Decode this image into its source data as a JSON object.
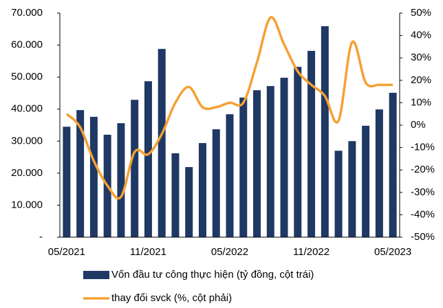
{
  "chart_data": {
    "type": "bar_line",
    "categories": [
      "05/2021",
      null,
      null,
      null,
      null,
      null,
      "11/2021",
      null,
      null,
      null,
      null,
      null,
      "05/2022",
      null,
      null,
      null,
      null,
      null,
      "11/2022",
      null,
      null,
      null,
      null,
      null,
      "05/2023"
    ],
    "series": [
      {
        "name": "Vốn đầu tư công thực hiện (tỷ đồng, cột trái)",
        "color": "#1f3864",
        "type": "bar",
        "values": [
          34500,
          39700,
          37600,
          32000,
          35600,
          42900,
          48700,
          58800,
          26200,
          21900,
          29400,
          33700,
          38400,
          43600,
          45900,
          47200,
          49800,
          53200,
          58200,
          65900,
          27000,
          30000,
          34800,
          39900,
          45100
        ]
      },
      {
        "name": "thay đổi svck (%, cột phải)",
        "color": "#f5a033",
        "type": "line",
        "axis": "y2",
        "values": [
          5,
          -1,
          -16,
          -27,
          -32,
          -12,
          -13,
          -4,
          10,
          17,
          8,
          8,
          10,
          10,
          28,
          48,
          36,
          24,
          18,
          13,
          2,
          37,
          19,
          18,
          18
        ]
      }
    ],
    "ylim": [
      0,
      70000
    ],
    "yticks": [
      {
        "value": 0,
        "label": "-"
      },
      {
        "value": 10000,
        "label": "10.000"
      },
      {
        "value": 20000,
        "label": "20.000"
      },
      {
        "value": 30000,
        "label": "30.000"
      },
      {
        "value": 40000,
        "label": "40.000"
      },
      {
        "value": 50000,
        "label": "50.000"
      },
      {
        "value": 60000,
        "label": "60.000"
      },
      {
        "value": 70000,
        "label": "70.000"
      }
    ],
    "y2lim": [
      -50,
      50
    ],
    "y2ticks": [
      {
        "value": -50,
        "label": "-50%"
      },
      {
        "value": -40,
        "label": "-40%"
      },
      {
        "value": -30,
        "label": "-30%"
      },
      {
        "value": -20,
        "label": "-20%"
      },
      {
        "value": -10,
        "label": "-10%"
      },
      {
        "value": 0,
        "label": "0%"
      },
      {
        "value": 10,
        "label": "10%"
      },
      {
        "value": 20,
        "label": "20%"
      },
      {
        "value": 30,
        "label": "30%"
      },
      {
        "value": 40,
        "label": "40%"
      },
      {
        "value": 50,
        "label": "50%"
      }
    ]
  }
}
